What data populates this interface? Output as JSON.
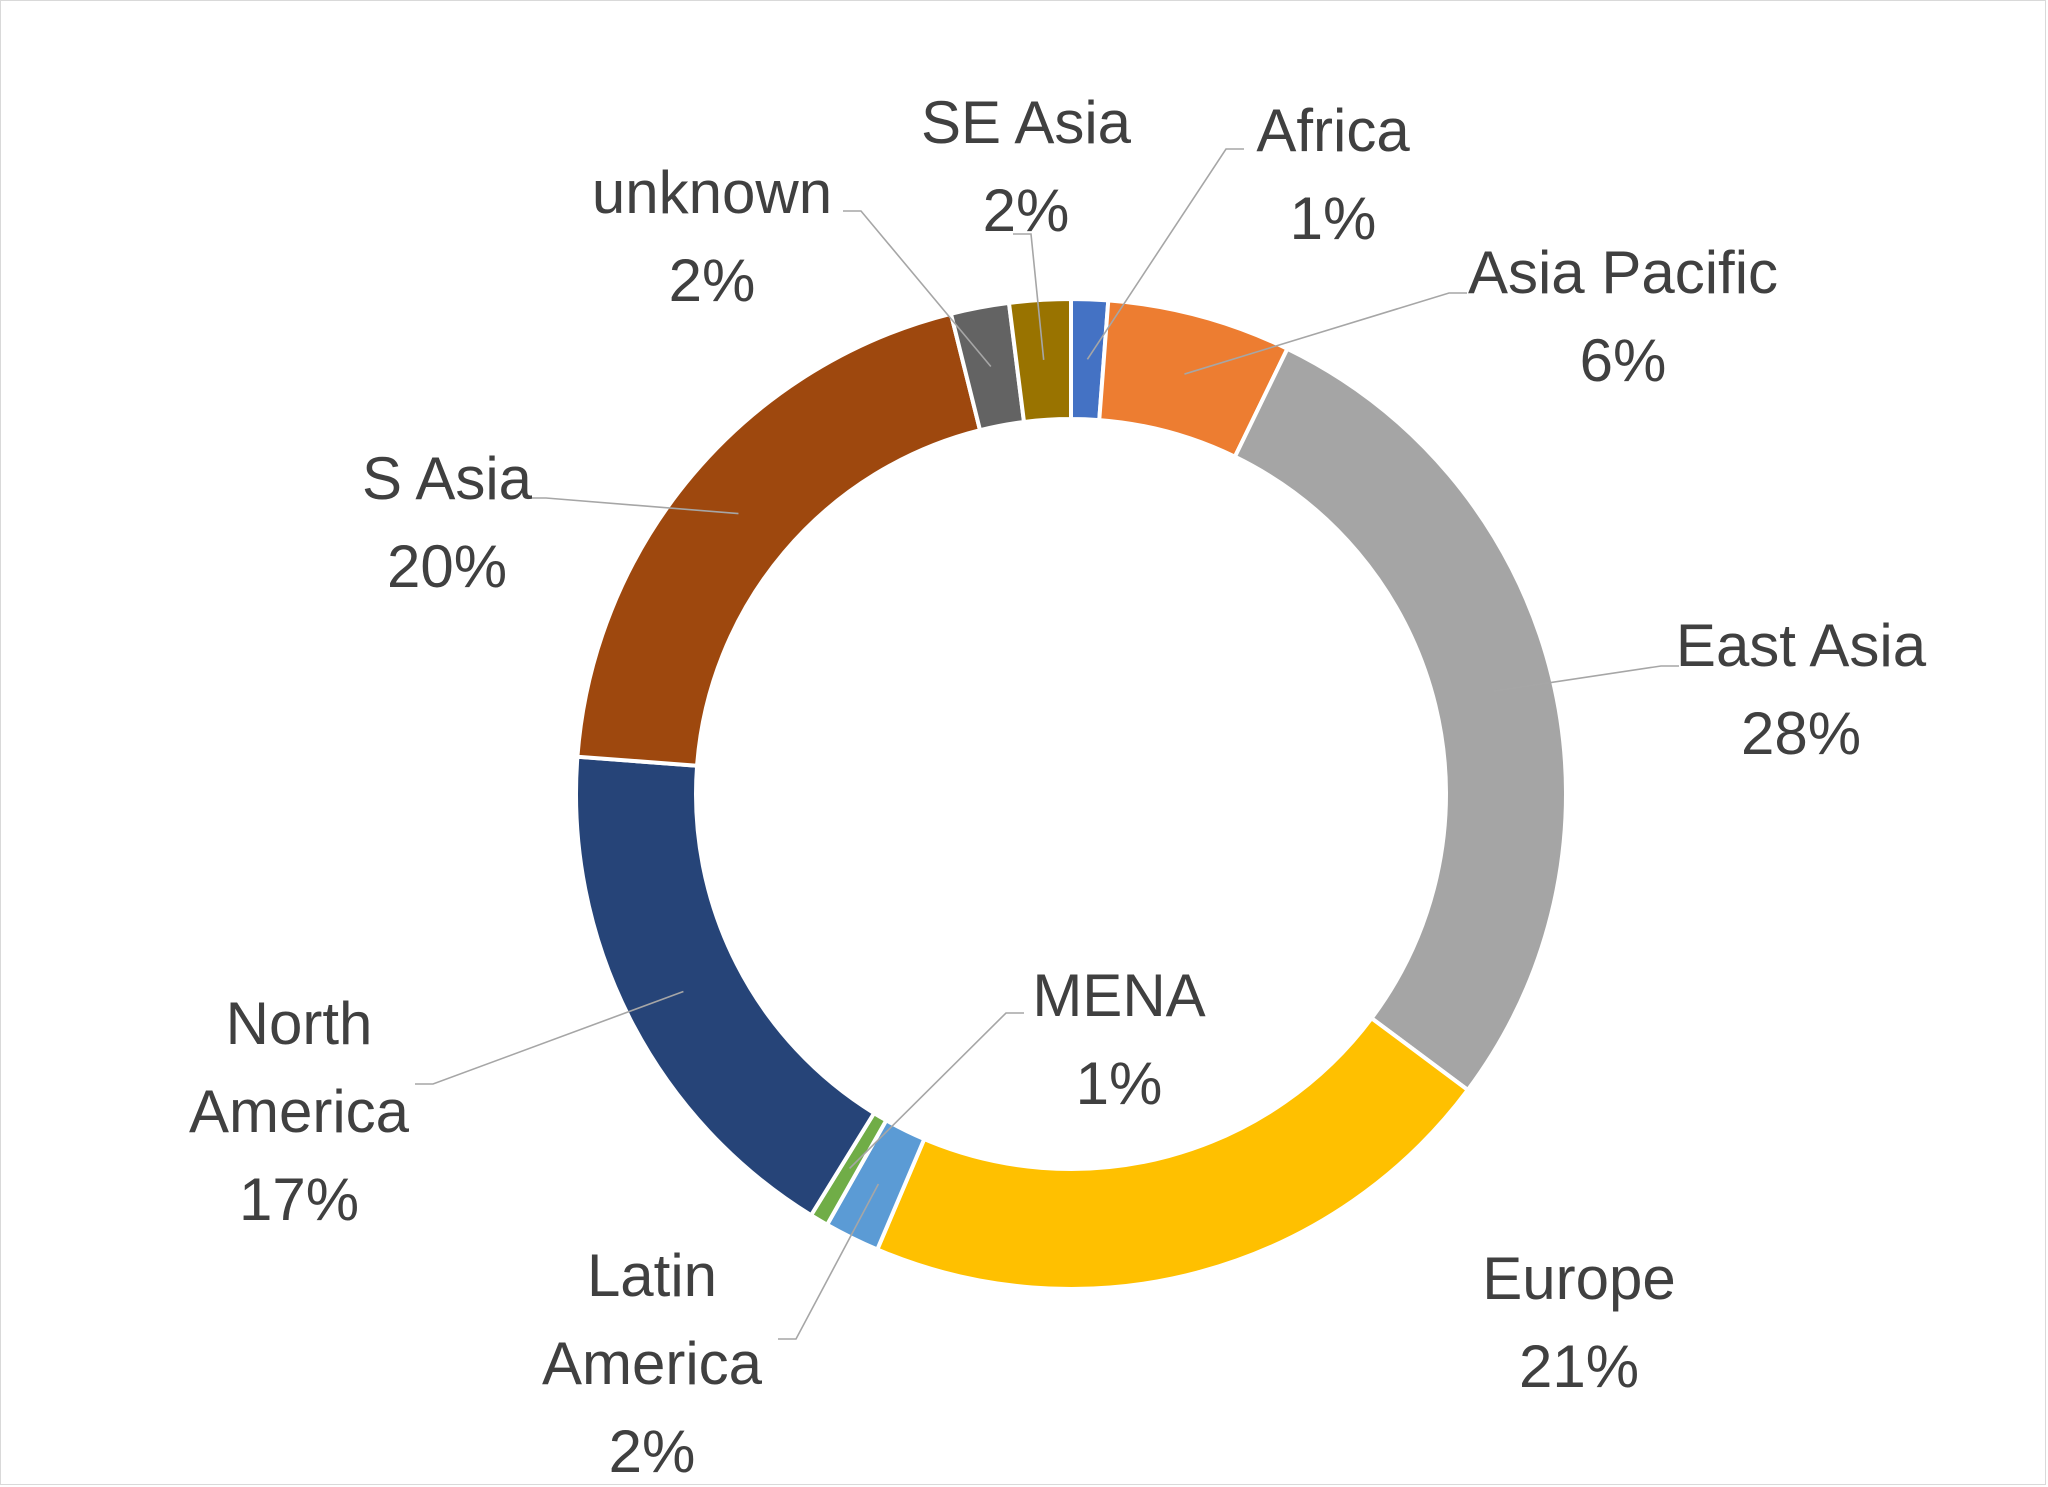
{
  "chart_data": {
    "type": "pie",
    "variant": "donut",
    "title": "",
    "legend": "none",
    "start_angle_deg": 0,
    "direction": "clockwise",
    "slices": [
      {
        "name": "Africa",
        "value": 1.2,
        "label_lines": [
          "Africa"
        ],
        "pct_label": "1%",
        "color": "#4472c4"
      },
      {
        "name": "Asia Pacific",
        "value": 6.0,
        "label_lines": [
          "Asia Pacific"
        ],
        "pct_label": "6%",
        "color": "#ed7d31"
      },
      {
        "name": "East Asia",
        "value": 28.0,
        "label_lines": [
          "East Asia"
        ],
        "pct_label": "28%",
        "color": "#a5a5a5"
      },
      {
        "name": "Europe",
        "value": 21.2,
        "label_lines": [
          "Europe"
        ],
        "pct_label": "21%",
        "color": "#ffc000"
      },
      {
        "name": "Latin America",
        "value": 1.8,
        "label_lines": [
          "Latin",
          "America"
        ],
        "pct_label": "2%",
        "color": "#5b9bd5"
      },
      {
        "name": "MENA",
        "value": 0.6,
        "label_lines": [
          "MENA"
        ],
        "pct_label": "1%",
        "color": "#70ad47"
      },
      {
        "name": "North America",
        "value": 17.4,
        "label_lines": [
          "North",
          "America"
        ],
        "pct_label": "17%",
        "color": "#264478"
      },
      {
        "name": "S Asia",
        "value": 19.9,
        "label_lines": [
          "S Asia"
        ],
        "pct_label": "20%",
        "color": "#9e480e"
      },
      {
        "name": "unknown",
        "value": 1.9,
        "label_lines": [
          "unknown"
        ],
        "pct_label": "2%",
        "color": "#636363"
      },
      {
        "name": "SE Asia",
        "value": 2.0,
        "label_lines": [
          "SE Asia"
        ],
        "pct_label": "2%",
        "color": "#997300"
      }
    ]
  }
}
